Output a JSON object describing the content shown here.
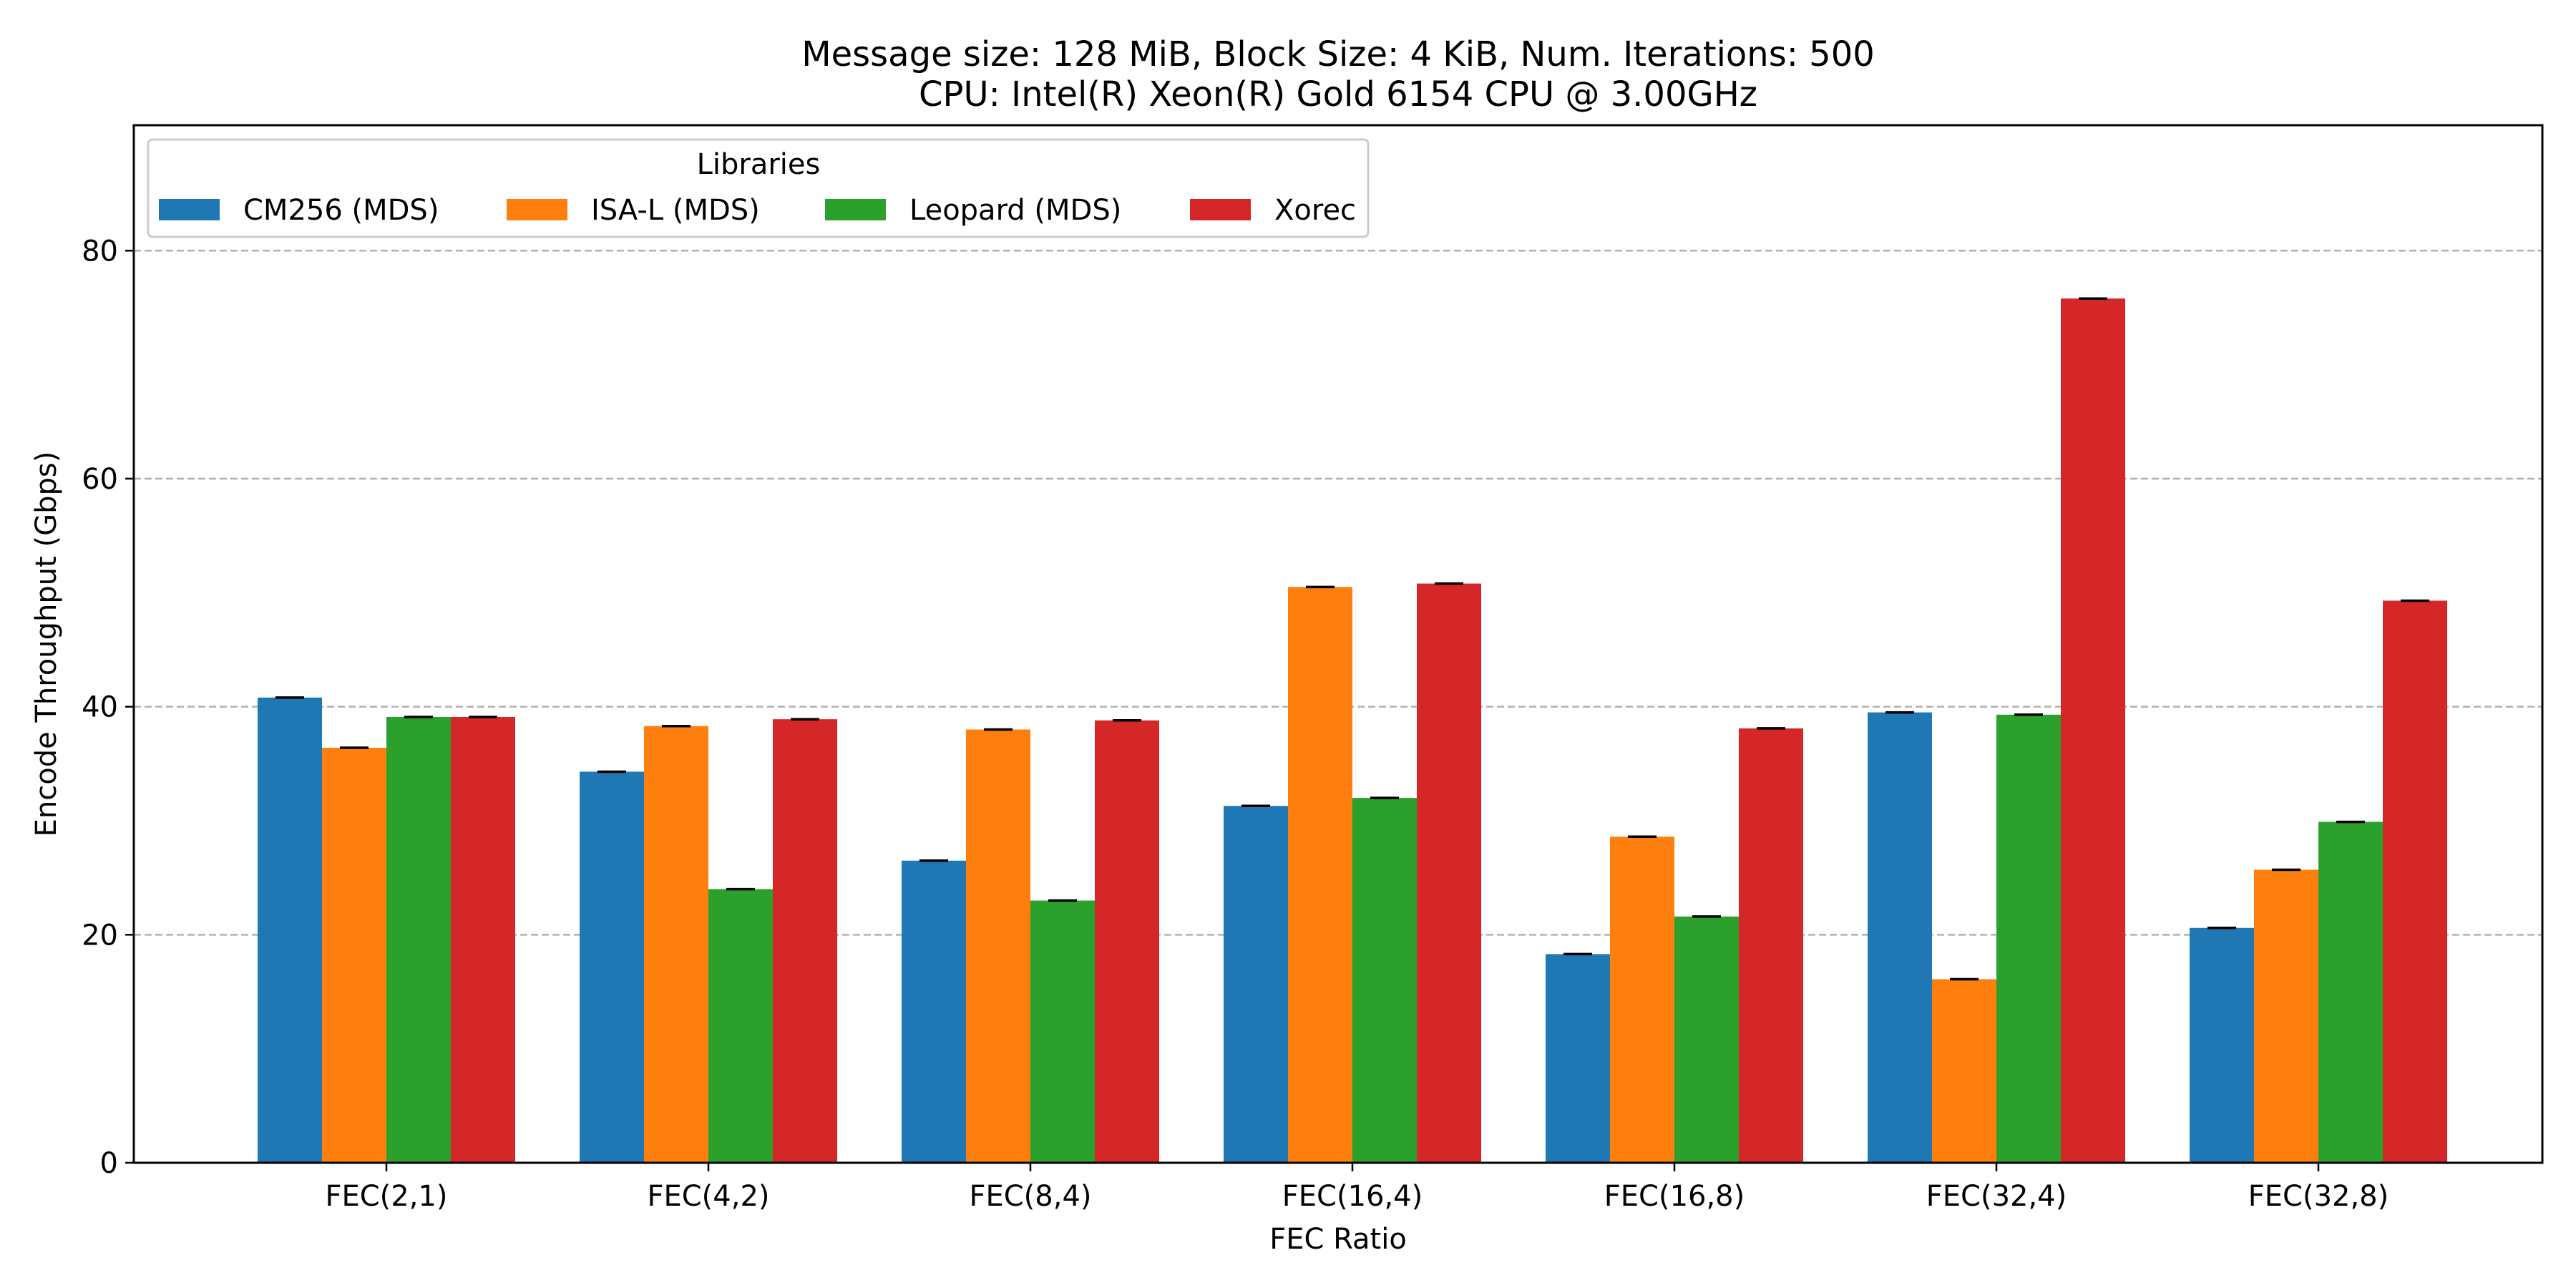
{
  "chart_data": {
    "type": "bar",
    "title": "Message size: 128 MiB, Block Size: 4 KiB, Num. Iterations: 500",
    "subtitle": "CPU: Intel(R) Xeon(R) Gold 6154 CPU @ 3.00GHz",
    "xlabel": "FEC Ratio",
    "ylabel": "Encode Throughput (Gbps)",
    "ylim": [
      0,
      91
    ],
    "yticks": [
      0,
      20,
      40,
      60,
      80
    ],
    "grid": "y-dashed",
    "error_bars": true,
    "legend": {
      "title": "Libraries",
      "placement": "top-left",
      "columns": 4
    },
    "categories": [
      "FEC(2,1)",
      "FEC(4,2)",
      "FEC(8,4)",
      "FEC(16,4)",
      "FEC(16,8)",
      "FEC(32,4)",
      "FEC(32,8)"
    ],
    "series": [
      {
        "name": "CM256 (MDS)",
        "color": "#1f77b4",
        "values": [
          40.8,
          34.3,
          26.5,
          31.3,
          18.3,
          39.5,
          20.6
        ]
      },
      {
        "name": "ISA-L (MDS)",
        "color": "#ff7f0e",
        "values": [
          36.4,
          38.3,
          38.0,
          50.5,
          28.6,
          16.1,
          25.7
        ]
      },
      {
        "name": "Leopard (MDS)",
        "color": "#2ca02c",
        "values": [
          39.1,
          24.0,
          23.0,
          32.0,
          21.6,
          39.3,
          29.9
        ]
      },
      {
        "name": "Xorec",
        "color": "#d62728",
        "values": [
          39.1,
          38.9,
          38.8,
          50.8,
          38.1,
          75.8,
          49.3
        ]
      }
    ]
  }
}
